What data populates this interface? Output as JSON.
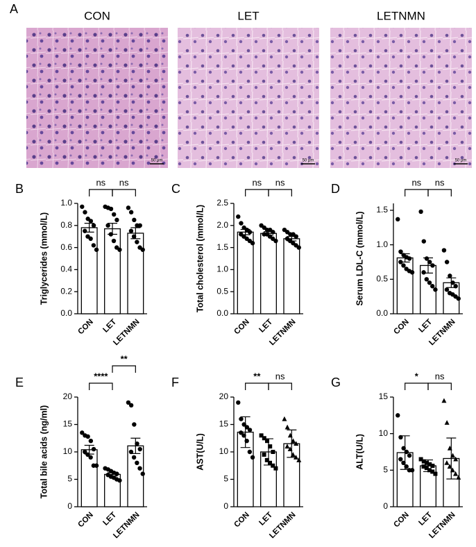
{
  "histology": {
    "label": "A",
    "images": [
      {
        "title": "CON",
        "scale_bar": "50 μm"
      },
      {
        "title": "LET",
        "scale_bar": "50 μm"
      },
      {
        "title": "LETNMN",
        "scale_bar": "50 μm"
      }
    ]
  },
  "chart_data": [
    {
      "type": "bar",
      "label": "B",
      "ylabel": "Triglycerides (mmol/L)",
      "categories": [
        "CON",
        "LET",
        "LETNMN"
      ],
      "values": [
        0.78,
        0.77,
        0.73
      ],
      "errors": [
        0.04,
        0.05,
        0.05
      ],
      "points": [
        [
          0.97,
          0.92,
          0.86,
          0.84,
          0.8,
          0.75,
          0.7,
          0.68,
          0.62,
          0.58
        ],
        [
          0.97,
          0.96,
          0.95,
          0.9,
          0.85,
          0.8,
          0.72,
          0.66,
          0.6,
          0.58
        ],
        [
          0.96,
          0.92,
          0.85,
          0.8,
          0.8,
          0.75,
          0.7,
          0.65,
          0.6,
          0.58
        ]
      ],
      "markers": [
        "circle",
        "circle",
        "circle"
      ],
      "ylim": [
        0,
        1
      ],
      "yticks": [
        {
          "value": 0,
          "label": "0.0"
        },
        0.2,
        0.4,
        0.6,
        0.8,
        {
          "value": 1,
          "label": "1.0"
        }
      ],
      "comparisons": [
        {
          "label": "ns",
          "groups": [
            "CON",
            "LET"
          ]
        },
        {
          "label": "ns",
          "groups": [
            "LET",
            "LETNMN"
          ]
        }
      ]
    },
    {
      "type": "bar",
      "label": "C",
      "ylabel": "Total cholesterol (mmol/L)",
      "categories": [
        "CON",
        "LET",
        "LETNMN"
      ],
      "values": [
        1.85,
        1.82,
        1.7
      ],
      "errors": [
        0.06,
        0.04,
        0.05
      ],
      "points": [
        [
          2.2,
          2.05,
          1.95,
          1.9,
          1.85,
          1.8,
          1.75,
          1.7,
          1.65,
          1.6
        ],
        [
          2.0,
          1.95,
          1.9,
          1.9,
          1.85,
          1.8,
          1.8,
          1.75,
          1.7,
          1.65
        ],
        [
          1.9,
          1.85,
          1.8,
          1.8,
          1.75,
          1.7,
          1.65,
          1.6,
          1.55,
          1.5
        ]
      ],
      "markers": [
        "circle",
        "circle",
        "circle"
      ],
      "ylim": [
        0,
        2.5
      ],
      "yticks": [
        {
          "value": 0,
          "label": "0.0"
        },
        0.5,
        {
          "value": 1,
          "label": "1.0"
        },
        1.5,
        {
          "value": 2,
          "label": "2.0"
        },
        2.5
      ],
      "comparisons": [
        {
          "label": "ns",
          "groups": [
            "CON",
            "LET"
          ]
        },
        {
          "label": "ns",
          "groups": [
            "LET",
            "LETNMN"
          ]
        }
      ]
    },
    {
      "type": "bar",
      "label": "D",
      "ylabel": "Serum LDL-C (mmol/L)",
      "categories": [
        "CON",
        "LET",
        "LETNMN"
      ],
      "values": [
        0.81,
        0.7,
        0.45
      ],
      "errors": [
        0.06,
        0.11,
        0.07
      ],
      "points": [
        [
          1.37,
          0.9,
          0.85,
          0.82,
          0.8,
          0.75,
          0.7,
          0.65,
          0.62,
          0.6
        ],
        [
          1.48,
          1.05,
          0.8,
          0.75,
          0.7,
          0.6,
          0.5,
          0.45,
          0.4,
          0.35
        ],
        [
          0.92,
          0.75,
          0.55,
          0.45,
          0.4,
          0.35,
          0.3,
          0.28,
          0.25,
          0.22
        ]
      ],
      "markers": [
        "circle",
        "circle",
        "circle"
      ],
      "ylim": [
        0,
        1.6
      ],
      "yticks": [
        {
          "value": 0,
          "label": "0.0"
        },
        0.5,
        {
          "value": 1,
          "label": "1.0"
        },
        1.5
      ],
      "comparisons": [
        {
          "label": "ns",
          "groups": [
            "CON",
            "LET"
          ]
        },
        {
          "label": "ns",
          "groups": [
            "LET",
            "LETNMN"
          ]
        }
      ]
    },
    {
      "type": "bar",
      "label": "E",
      "ylabel": "Total bile acids (ng/ml)",
      "categories": [
        "CON",
        "LET",
        "LETNMN"
      ],
      "values": [
        10.4,
        5.9,
        11.1
      ],
      "errors": [
        0.8,
        0.3,
        1.4
      ],
      "points": [
        [
          13.5,
          13,
          12.8,
          12,
          10.5,
          10,
          9.5,
          9,
          7.5,
          7.5
        ],
        [
          7.0,
          6.8,
          6.5,
          6.2,
          6,
          5.8,
          5.5,
          5.3,
          5,
          4.8
        ],
        [
          19,
          18.5,
          15,
          11.5,
          10.5,
          10,
          9,
          8,
          7,
          6
        ]
      ],
      "markers": [
        "circle",
        "circle",
        "circle"
      ],
      "ylim": [
        0,
        20
      ],
      "yticks": [
        0,
        5,
        10,
        15,
        20
      ],
      "comparisons": [
        {
          "label": "****",
          "groups": [
            "CON",
            "LET"
          ]
        },
        {
          "label": "**",
          "groups": [
            "LET",
            "LETNMN"
          ]
        }
      ]
    },
    {
      "type": "bar",
      "label": "F",
      "ylabel": "AST(U/L)",
      "categories": [
        "CON",
        "LET",
        "LETNMN"
      ],
      "values": [
        13.6,
        10.0,
        11.5
      ],
      "errors": [
        2.8,
        2.4,
        2.5
      ],
      "points": [
        [
          19,
          16,
          15,
          14.5,
          14,
          13.5,
          13,
          12,
          10,
          9
        ],
        [
          13,
          12.5,
          12,
          11,
          10,
          9.5,
          8.5,
          8,
          7.5,
          7
        ],
        [
          16,
          14.5,
          13,
          12,
          11.5,
          11,
          10.5,
          9.5,
          9,
          8.5
        ]
      ],
      "markers": [
        "circle",
        "square",
        "triangle"
      ],
      "ylim": [
        0,
        20
      ],
      "yticks": [
        0,
        5,
        10,
        15,
        20
      ],
      "comparisons": [
        {
          "label": "**",
          "groups": [
            "CON",
            "LET"
          ]
        },
        {
          "label": "ns",
          "groups": [
            "LET",
            "LETNMN"
          ]
        }
      ]
    },
    {
      "type": "bar",
      "label": "G",
      "ylabel": "ALT(U/L)",
      "categories": [
        "CON",
        "LET",
        "LETNMN"
      ],
      "values": [
        7.4,
        5.6,
        6.6
      ],
      "errors": [
        2.3,
        0.8,
        2.8
      ],
      "points": [
        [
          12.5,
          9.5,
          8,
          7.5,
          7,
          6.5,
          6,
          5.5,
          5,
          5
        ],
        [
          6.5,
          6.2,
          6,
          5.8,
          5.6,
          5.5,
          5.3,
          5,
          4.8,
          4.5
        ],
        [
          14.5,
          11.5,
          8,
          7,
          6.5,
          6,
          5.5,
          5,
          4.5,
          4
        ]
      ],
      "markers": [
        "circle",
        "square",
        "triangle"
      ],
      "ylim": [
        0,
        15
      ],
      "yticks": [
        0,
        5,
        10,
        15
      ],
      "comparisons": [
        {
          "label": "*",
          "groups": [
            "CON",
            "LET"
          ]
        },
        {
          "label": "ns",
          "groups": [
            "LET",
            "LETNMN"
          ]
        }
      ]
    }
  ]
}
